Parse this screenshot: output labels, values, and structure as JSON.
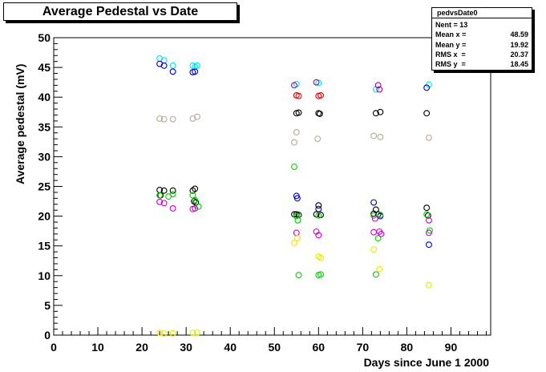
{
  "chart_data": {
    "type": "scatter",
    "title": "Average Pedestal vs Date",
    "xlabel": "Days since June 1 2000",
    "ylabel": "Average pedestal (mV)",
    "xlim": [
      0,
      99
    ],
    "ylim": [
      0,
      50
    ],
    "x_ticks": [
      0,
      10,
      20,
      30,
      40,
      50,
      60,
      70,
      80,
      90
    ],
    "y_ticks": [
      0,
      5,
      10,
      15,
      20,
      25,
      30,
      35,
      40,
      45,
      50
    ],
    "grid": false,
    "stats": {
      "name": "pedvsDate0",
      "rows": [
        {
          "key": "Nent = 13",
          "value": ""
        },
        {
          "key": "Mean x = ",
          "value": "48.59"
        },
        {
          "key": "Mean y = ",
          "value": "19.92"
        },
        {
          "key": "RMS x  = ",
          "value": "20.37"
        },
        {
          "key": "RMS y  = ",
          "value": "18.45"
        }
      ]
    },
    "series": [
      {
        "color": "#00e5e5",
        "points": [
          [
            24,
            46.5
          ],
          [
            25,
            46.2
          ],
          [
            27,
            45.3
          ],
          [
            31.5,
            45.3
          ],
          [
            32,
            45.1
          ],
          [
            32.5,
            45.3
          ],
          [
            55,
            42.2
          ],
          [
            60,
            42.4
          ],
          [
            73,
            41.3
          ],
          [
            85,
            42.1
          ]
        ]
      },
      {
        "color": "#0000c8",
        "points": [
          [
            24,
            45.6
          ],
          [
            25,
            45.3
          ],
          [
            27,
            44.3
          ],
          [
            31.5,
            44.2
          ],
          [
            32,
            44.3
          ],
          [
            55,
            23.4
          ],
          [
            55.2,
            23.0
          ],
          [
            60,
            21.2
          ],
          [
            72.5,
            22.3
          ],
          [
            74,
            20.0
          ],
          [
            84.5,
            41.6
          ],
          [
            85,
            15.2
          ]
        ]
      },
      {
        "color": "#e00000",
        "points": [
          [
            55,
            40.3
          ],
          [
            55.5,
            40.2
          ],
          [
            60,
            40.2
          ],
          [
            60.5,
            40.3
          ]
        ]
      },
      {
        "color": "#a000a0",
        "points": [
          [
            54.5,
            42.0
          ],
          [
            59.5,
            42.5
          ],
          [
            73.5,
            42.0
          ],
          [
            73.8,
            41.3
          ]
        ]
      },
      {
        "color": "#000000",
        "points": [
          [
            55,
            37.3
          ],
          [
            55.5,
            37.4
          ],
          [
            60,
            37.3
          ],
          [
            60.3,
            37.2
          ],
          [
            73,
            37.3
          ],
          [
            74,
            37.5
          ],
          [
            84.5,
            37.3
          ],
          [
            24,
            24.4
          ],
          [
            25,
            24.3
          ],
          [
            27,
            24.3
          ],
          [
            31.5,
            24.3
          ],
          [
            32,
            24.6
          ],
          [
            54.5,
            20.3
          ],
          [
            55,
            20.3
          ],
          [
            55.5,
            20.2
          ],
          [
            59.5,
            20.3
          ],
          [
            60,
            21.8
          ],
          [
            60.5,
            20.2
          ],
          [
            72.5,
            20.4
          ],
          [
            73,
            21.1
          ],
          [
            73.5,
            20.3
          ],
          [
            84.5,
            21.4
          ],
          [
            84.8,
            20.1
          ],
          [
            24.2,
            23.5
          ],
          [
            31.8,
            22.5
          ],
          [
            32.2,
            22.3
          ]
        ]
      },
      {
        "color": "#b8a898",
        "points": [
          [
            24,
            36.4
          ],
          [
            25,
            36.3
          ],
          [
            27,
            36.3
          ],
          [
            31.5,
            36.4
          ],
          [
            32.5,
            36.7
          ],
          [
            55,
            34.1
          ],
          [
            54.5,
            32.4
          ],
          [
            59.8,
            33.0
          ],
          [
            72.5,
            33.5
          ],
          [
            74,
            33.3
          ],
          [
            85,
            33.2
          ]
        ]
      },
      {
        "color": "#00d000",
        "points": [
          [
            24,
            23.5
          ],
          [
            26,
            23.3
          ],
          [
            27,
            23.7
          ],
          [
            31.5,
            23.5
          ],
          [
            32,
            22.7
          ],
          [
            32.8,
            21.6
          ],
          [
            54.5,
            28.3
          ],
          [
            55,
            20.0
          ],
          [
            55.3,
            19.3
          ],
          [
            60,
            20.1
          ],
          [
            72.5,
            20.1
          ],
          [
            74,
            20.2
          ],
          [
            84.5,
            20.3
          ],
          [
            85.2,
            17.6
          ],
          [
            73.5,
            16.3
          ],
          [
            55.5,
            10.1
          ],
          [
            60,
            10.1
          ],
          [
            60.5,
            10.2
          ],
          [
            73,
            10.2
          ]
        ]
      },
      {
        "color": "#d000d0",
        "points": [
          [
            24,
            22.4
          ],
          [
            25,
            22.2
          ],
          [
            27,
            21.3
          ],
          [
            31.5,
            21.2
          ],
          [
            32,
            21.3
          ],
          [
            55,
            17.2
          ],
          [
            59.5,
            17.4
          ],
          [
            60,
            16.8
          ],
          [
            72.5,
            17.3
          ],
          [
            73.8,
            17.4
          ],
          [
            74.2,
            17.0
          ],
          [
            85,
            17.2
          ],
          [
            72.8,
            19.6
          ],
          [
            85,
            19.3
          ]
        ]
      },
      {
        "color": "#e8e800",
        "points": [
          [
            54.5,
            15.5
          ],
          [
            55.2,
            16.3
          ],
          [
            60,
            13.2
          ],
          [
            60.5,
            13.0
          ],
          [
            72.5,
            14.4
          ],
          [
            73.8,
            11.1
          ],
          [
            85,
            8.4
          ],
          [
            24,
            0.4
          ],
          [
            25,
            0.3
          ],
          [
            27,
            0.3
          ],
          [
            31.5,
            0.4
          ],
          [
            32.5,
            0.4
          ]
        ]
      }
    ]
  }
}
